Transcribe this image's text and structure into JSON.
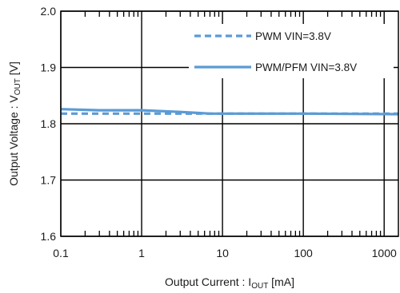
{
  "chart_data": {
    "type": "line",
    "xlabel": {
      "main": "Output Current : I",
      "sub": "OUT",
      "unit": " [mA]"
    },
    "ylabel": {
      "main": "Output Voltage : V",
      "sub": "OUT",
      "unit": " [V]"
    },
    "xscale": "log",
    "xlim": [
      0.1,
      1500
    ],
    "ylim": [
      1.6,
      2.0
    ],
    "x_ticks": [
      {
        "value": 0.1,
        "label": "0.1"
      },
      {
        "value": 1,
        "label": "1"
      },
      {
        "value": 10,
        "label": "10"
      },
      {
        "value": 100,
        "label": "100"
      },
      {
        "value": 1000,
        "label": "1000"
      }
    ],
    "y_ticks": [
      {
        "value": 1.6,
        "label": "1.6"
      },
      {
        "value": 1.7,
        "label": "1.7"
      },
      {
        "value": 1.8,
        "label": "1.8"
      },
      {
        "value": 1.9,
        "label": "1.9"
      },
      {
        "value": 2.0,
        "label": "2.0"
      }
    ],
    "grid": true,
    "legend_position": "top-right",
    "series": [
      {
        "name": "PWM VIN=3.8V",
        "style": "dashed",
        "color": "#5b9bd5",
        "x": [
          0.1,
          1,
          10,
          100,
          1500
        ],
        "y": [
          1.818,
          1.818,
          1.818,
          1.818,
          1.818
        ]
      },
      {
        "name": "PWM/PFM VIN=3.8V",
        "style": "solid",
        "color": "#5b9bd5",
        "x": [
          0.1,
          0.3,
          1,
          3,
          7,
          10,
          100,
          1500
        ],
        "y": [
          1.826,
          1.824,
          1.824,
          1.821,
          1.818,
          1.818,
          1.818,
          1.817
        ]
      }
    ]
  }
}
